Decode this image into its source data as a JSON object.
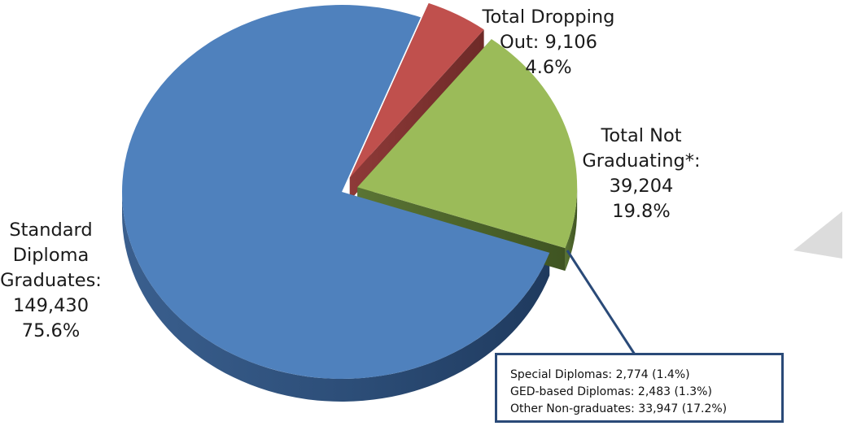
{
  "colors": {
    "standard": "#4f81bd",
    "dropping": "#c0504d",
    "notgrad": "#9bbb59",
    "callout_border": "#2a4a78",
    "corner_mark": "#dcdcdc"
  },
  "chart_data": {
    "type": "pie",
    "style": "3d-exploded",
    "title": "",
    "slices": [
      {
        "label": "Standard Diploma Graduates",
        "value": 149430,
        "percent": 75.6,
        "color": "#4f81bd"
      },
      {
        "label": "Total Dropping Out",
        "value": 9106,
        "percent": 4.6,
        "color": "#c0504d"
      },
      {
        "label": "Total Not Graduating*",
        "value": 39204,
        "percent": 19.8,
        "color": "#9bbb59"
      }
    ],
    "labels": {
      "standard": [
        "Standard",
        "Diploma",
        "Graduates:",
        "149,430",
        "75.6%"
      ],
      "dropping": [
        "Total Dropping",
        "Out: 9,106",
        "4.6%"
      ],
      "notgrad": [
        "Total Not",
        "Graduating*:",
        "39,204",
        "19.8%"
      ]
    },
    "callout": {
      "lines": [
        "Special Diplomas: 2,774 (1.4%)",
        "GED-based Diplomas: 2,483 (1.3%)",
        "Other Non-graduates: 33,947 (17.2%)"
      ],
      "breakdown": [
        {
          "label": "Special Diplomas",
          "value": 2774,
          "percent": 1.4
        },
        {
          "label": "GED-based Diplomas",
          "value": 2483,
          "percent": 1.3
        },
        {
          "label": "Other Non-graduates",
          "value": 33947,
          "percent": 17.2
        }
      ]
    }
  }
}
